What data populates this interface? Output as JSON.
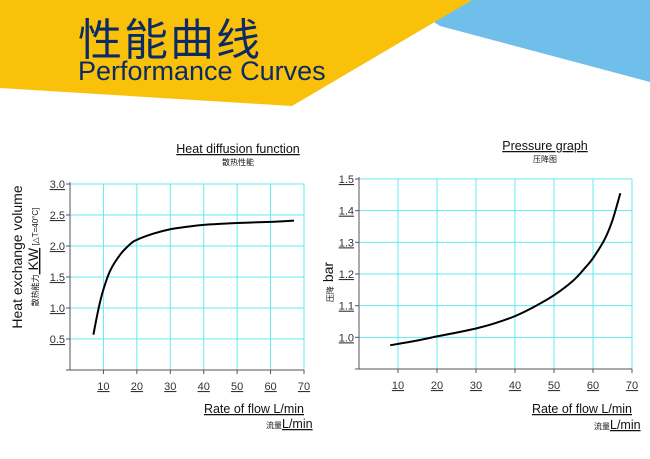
{
  "header": {
    "title_cn": "性能曲线",
    "title_en": "Performance Curves",
    "colors": {
      "yellow": "#f9c10a",
      "blue": "#6fbfea",
      "text": "#0b2a66"
    }
  },
  "chart_data": [
    {
      "type": "line",
      "title": "Heat diffusion function",
      "subtitle": "散热性能",
      "ylabel": "Heat exchange volume",
      "ylabel_sub": "散热能力",
      "ylabel_unit": "KW",
      "ylabel_cond": "[△T=40°C]",
      "xlabel": "Rate of flow L/min",
      "xlabel_sub_cn": "流量",
      "xlabel_sub_unit": "L/min",
      "xlim": [
        0,
        70
      ],
      "ylim": [
        0,
        3.0
      ],
      "xticks": [
        "10",
        "20",
        "30",
        "40",
        "50",
        "60",
        "70"
      ],
      "yticks": [
        "0.5",
        "1.0",
        "1.5",
        "2.0",
        "2.5",
        "3.0"
      ],
      "grid": true,
      "grid_color": "#66e8f0",
      "x": [
        7,
        8,
        9,
        10,
        12,
        15,
        18,
        20,
        25,
        30,
        35,
        40,
        50,
        60,
        67
      ],
      "y": [
        0.57,
        0.85,
        1.1,
        1.3,
        1.6,
        1.86,
        2.03,
        2.1,
        2.2,
        2.27,
        2.31,
        2.34,
        2.37,
        2.39,
        2.41
      ]
    },
    {
      "type": "line",
      "title": "Pressure graph",
      "subtitle": "压降图",
      "ylabel": "bar",
      "ylabel_sub": "压降",
      "xlabel": "Rate of flow L/min",
      "xlabel_sub_cn": "流量",
      "xlabel_sub_unit": "L/min",
      "xlim": [
        0,
        70
      ],
      "ylim": [
        0.9,
        1.5
      ],
      "xticks": [
        "10",
        "20",
        "30",
        "40",
        "50",
        "60",
        "70"
      ],
      "yticks": [
        "1.0",
        "1.1",
        "1.2",
        "1.3",
        "1.4",
        "1.5"
      ],
      "grid": true,
      "grid_color": "#66e8f0",
      "x": [
        8,
        15,
        20,
        25,
        30,
        35,
        40,
        45,
        50,
        55,
        58,
        60,
        63,
        65,
        67
      ],
      "y": [
        0.975,
        0.99,
        1.003,
        1.015,
        1.028,
        1.045,
        1.067,
        1.097,
        1.133,
        1.18,
        1.22,
        1.25,
        1.31,
        1.37,
        1.455
      ]
    }
  ]
}
